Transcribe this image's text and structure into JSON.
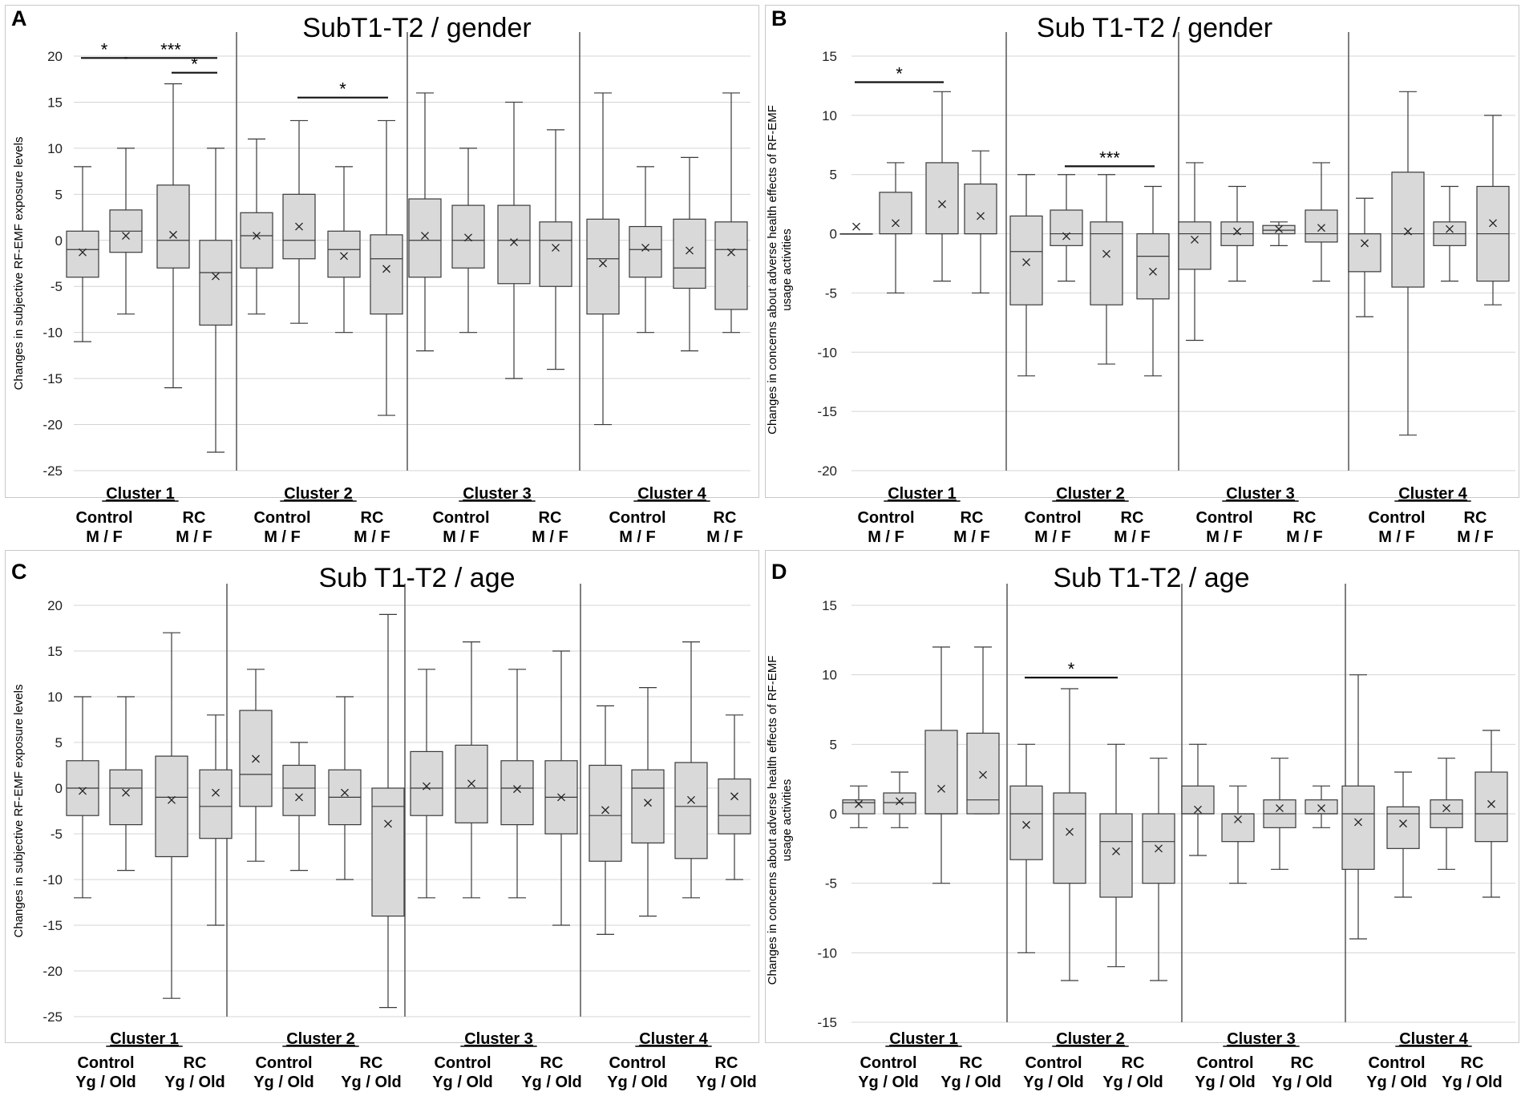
{
  "chart_data": [
    {
      "type": "boxplot",
      "panel_letter": "A",
      "title": "SubT1-T2 / gender",
      "ylabel": "Changes in subjective RF-EMF exposure levels",
      "ylim": [
        -25,
        20
      ],
      "yticks": [
        20,
        15,
        10,
        5,
        0,
        -5,
        -10,
        -15,
        -20,
        -25
      ],
      "clusters": [
        "Cluster 1",
        "Cluster 2",
        "Cluster 3",
        "Cluster 4"
      ],
      "group_labels": [
        "Control",
        "RC"
      ],
      "subgroup_label": "M / F",
      "boxes": [
        {
          "min": -11,
          "q1": -4,
          "median": -1,
          "q3": 1,
          "max": 8,
          "mean": -1.3
        },
        {
          "min": -8,
          "q1": -1.3,
          "median": 1,
          "q3": 3.3,
          "max": 10,
          "mean": 0.5
        },
        {
          "min": -16,
          "q1": -3,
          "median": 0,
          "q3": 6,
          "max": 17,
          "mean": 0.6
        },
        {
          "min": -23,
          "q1": -9.2,
          "median": -3.5,
          "q3": 0,
          "max": 10,
          "mean": -3.9
        },
        {
          "min": -8,
          "q1": -3,
          "median": 0.5,
          "q3": 3,
          "max": 11,
          "mean": 0.5
        },
        {
          "min": -9,
          "q1": -2,
          "median": 0,
          "q3": 5,
          "max": 13,
          "mean": 1.5
        },
        {
          "min": -10,
          "q1": -4,
          "median": -1,
          "q3": 1,
          "max": 8,
          "mean": -1.7
        },
        {
          "min": -19,
          "q1": -8,
          "median": -2,
          "q3": 0.6,
          "max": 13,
          "mean": -3.1
        },
        {
          "min": -12,
          "q1": -4,
          "median": 0,
          "q3": 4.5,
          "max": 16,
          "mean": 0.5
        },
        {
          "min": -10,
          "q1": -3,
          "median": 0,
          "q3": 3.8,
          "max": 10,
          "mean": 0.3
        },
        {
          "min": -15,
          "q1": -4.7,
          "median": 0,
          "q3": 3.8,
          "max": 15,
          "mean": -0.2
        },
        {
          "min": -14,
          "q1": -5,
          "median": 0,
          "q3": 2,
          "max": 12,
          "mean": -0.8
        },
        {
          "min": -20,
          "q1": -8,
          "median": -2,
          "q3": 2.3,
          "max": 16,
          "mean": -2.5
        },
        {
          "min": -10,
          "q1": -4,
          "median": -1,
          "q3": 1.5,
          "max": 8,
          "mean": -0.8
        },
        {
          "min": -12,
          "q1": -5.2,
          "median": -3,
          "q3": 2.3,
          "max": 9,
          "mean": -1.1
        },
        {
          "min": -10,
          "q1": -7.5,
          "median": -1,
          "q3": 2,
          "max": 16,
          "mean": -1.3
        }
      ],
      "significance": [
        {
          "from": 0,
          "to": 1,
          "y": 19.8,
          "label": "*"
        },
        {
          "from": 1,
          "to": 3,
          "y": 19.8,
          "label": "***"
        },
        {
          "from": 2,
          "to": 3,
          "y": 18.2,
          "label": "*"
        },
        {
          "from": 5,
          "to": 7,
          "y": 15.5,
          "label": "*"
        }
      ]
    },
    {
      "type": "boxplot",
      "panel_letter": "B",
      "title": "Sub T1-T2 / gender",
      "ylabel": "Changes in concerns about adverse health effects of RF-EMF usage activities",
      "ylim": [
        -20,
        15
      ],
      "yticks": [
        15,
        10,
        5,
        0,
        -5,
        -10,
        -15,
        -20
      ],
      "clusters": [
        "Cluster 1",
        "Cluster 2",
        "Cluster 3",
        "Cluster 4"
      ],
      "group_labels": [
        "Control",
        "RC"
      ],
      "subgroup_label": "M / F",
      "boxes": [
        {
          "min": 0,
          "q1": 0,
          "median": 0,
          "q3": 0,
          "max": 0,
          "mean": 0.6
        },
        {
          "min": -5,
          "q1": 0,
          "median": 0,
          "q3": 3.5,
          "max": 6,
          "mean": 0.9
        },
        {
          "min": -4,
          "q1": 0,
          "median": 0,
          "q3": 6,
          "max": 12,
          "mean": 2.5
        },
        {
          "min": -5,
          "q1": 0,
          "median": 0,
          "q3": 4.2,
          "max": 7,
          "mean": 1.5
        },
        {
          "min": -12,
          "q1": -6,
          "median": -1.5,
          "q3": 1.5,
          "max": 5,
          "mean": -2.4
        },
        {
          "min": -4,
          "q1": -1,
          "median": 0,
          "q3": 2,
          "max": 5,
          "mean": -0.2
        },
        {
          "min": -11,
          "q1": -6,
          "median": 0,
          "q3": 1,
          "max": 5,
          "mean": -1.7
        },
        {
          "min": -12,
          "q1": -5.5,
          "median": -1.9,
          "q3": 0,
          "max": 4,
          "mean": -3.2
        },
        {
          "min": -9,
          "q1": -3,
          "median": 0,
          "q3": 1,
          "max": 6,
          "mean": -0.5
        },
        {
          "min": -4,
          "q1": -1,
          "median": 0,
          "q3": 1,
          "max": 4,
          "mean": 0.2
        },
        {
          "min": -1,
          "q1": 0,
          "median": 0.3,
          "q3": 0.7,
          "max": 1,
          "mean": 0.4
        },
        {
          "min": -4,
          "q1": -0.7,
          "median": 0,
          "q3": 2,
          "max": 6,
          "mean": 0.5
        },
        {
          "min": -7,
          "q1": -3.2,
          "median": 0,
          "q3": 0,
          "max": 3,
          "mean": -0.8
        },
        {
          "min": -17,
          "q1": -4.5,
          "median": 0,
          "q3": 5.2,
          "max": 12,
          "mean": 0.2
        },
        {
          "min": -4,
          "q1": -1,
          "median": 0,
          "q3": 1,
          "max": 4,
          "mean": 0.4
        },
        {
          "min": -6,
          "q1": -4,
          "median": 0,
          "q3": 4,
          "max": 10,
          "mean": 0.9
        }
      ],
      "significance": [
        {
          "from": 0,
          "to": 2,
          "y": 12.8,
          "label": "*"
        },
        {
          "from": 5,
          "to": 7,
          "y": 5.7,
          "label": "***"
        }
      ]
    },
    {
      "type": "boxplot",
      "panel_letter": "C",
      "title": "Sub T1-T2 / age",
      "ylabel": "Changes in subjective RF-EMF exposure levels",
      "ylim": [
        -25,
        20
      ],
      "yticks": [
        20,
        15,
        10,
        5,
        0,
        -5,
        -10,
        -15,
        -20,
        -25
      ],
      "clusters": [
        "Cluster 1",
        "Cluster 2",
        "Cluster 3",
        "Cluster 4"
      ],
      "group_labels": [
        "Control",
        "RC"
      ],
      "subgroup_label": "Yg / Old",
      "boxes": [
        {
          "min": -12,
          "q1": -3,
          "median": 0,
          "q3": 3,
          "max": 10,
          "mean": -0.3
        },
        {
          "min": -9,
          "q1": -4,
          "median": 0,
          "q3": 2,
          "max": 10,
          "mean": -0.5
        },
        {
          "min": -23,
          "q1": -7.5,
          "median": -1,
          "q3": 3.5,
          "max": 17,
          "mean": -1.3
        },
        {
          "min": -15,
          "q1": -5.5,
          "median": -2,
          "q3": 2,
          "max": 8,
          "mean": -0.5
        },
        {
          "min": -8,
          "q1": -2,
          "median": 1.5,
          "q3": 8.5,
          "max": 13,
          "mean": 3.2
        },
        {
          "min": -9,
          "q1": -3,
          "median": 0,
          "q3": 2.5,
          "max": 5,
          "mean": -1
        },
        {
          "min": -10,
          "q1": -4,
          "median": -1,
          "q3": 2,
          "max": 10,
          "mean": -0.5
        },
        {
          "min": -24,
          "q1": -14,
          "median": -2,
          "q3": 0,
          "max": 19,
          "mean": -3.9
        },
        {
          "min": -12,
          "q1": -3,
          "median": 0,
          "q3": 4,
          "max": 13,
          "mean": 0.2
        },
        {
          "min": -12,
          "q1": -3.8,
          "median": 0,
          "q3": 4.7,
          "max": 16,
          "mean": 0.5
        },
        {
          "min": -12,
          "q1": -4,
          "median": 0,
          "q3": 3,
          "max": 13,
          "mean": -0.1
        },
        {
          "min": -15,
          "q1": -5,
          "median": -1,
          "q3": 3,
          "max": 15,
          "mean": -1
        },
        {
          "min": -16,
          "q1": -8,
          "median": -3,
          "q3": 2.5,
          "max": 9,
          "mean": -2.4
        },
        {
          "min": -14,
          "q1": -6,
          "median": 0,
          "q3": 2,
          "max": 11,
          "mean": -1.6
        },
        {
          "min": -12,
          "q1": -7.7,
          "median": -2,
          "q3": 2.8,
          "max": 16,
          "mean": -1.3
        },
        {
          "min": -10,
          "q1": -5,
          "median": -3,
          "q3": 1,
          "max": 8,
          "mean": -0.9
        }
      ],
      "significance": []
    },
    {
      "type": "boxplot",
      "panel_letter": "D",
      "title": "Sub T1-T2 / age",
      "ylabel": "Changes in concerns about adverse health effects of RF-EMF usage activities",
      "ylim": [
        -15,
        15
      ],
      "yticks": [
        15,
        10,
        5,
        0,
        -5,
        -10,
        -15
      ],
      "clusters": [
        "Cluster 1",
        "Cluster 2",
        "Cluster 3",
        "Cluster 4"
      ],
      "group_labels": [
        "Control",
        "RC"
      ],
      "subgroup_label": "Yg / Old",
      "boxes": [
        {
          "min": -1,
          "q1": 0,
          "median": 0.8,
          "q3": 1,
          "max": 2,
          "mean": 0.7
        },
        {
          "min": -1,
          "q1": 0,
          "median": 0.8,
          "q3": 1.5,
          "max": 3,
          "mean": 0.9
        },
        {
          "min": -5,
          "q1": 0,
          "median": 0,
          "q3": 6,
          "max": 12,
          "mean": 1.8
        },
        {
          "min": 0,
          "q1": 0,
          "median": 1,
          "q3": 5.8,
          "max": 12,
          "mean": 2.8
        },
        {
          "min": -10,
          "q1": -3.3,
          "median": 0,
          "q3": 2,
          "max": 5,
          "mean": -0.8
        },
        {
          "min": -12,
          "q1": -5,
          "median": 0,
          "q3": 1.5,
          "max": 9,
          "mean": -1.3
        },
        {
          "min": -11,
          "q1": -6,
          "median": -2,
          "q3": 0,
          "max": 5,
          "mean": -2.7
        },
        {
          "min": -12,
          "q1": -5,
          "median": -2,
          "q3": 0,
          "max": 4,
          "mean": -2.5
        },
        {
          "min": -3,
          "q1": 0,
          "median": 0,
          "q3": 2,
          "max": 5,
          "mean": 0.3
        },
        {
          "min": -5,
          "q1": -2,
          "median": 0,
          "q3": 0,
          "max": 2,
          "mean": -0.4
        },
        {
          "min": -4,
          "q1": -1,
          "median": 0,
          "q3": 1,
          "max": 4,
          "mean": 0.4
        },
        {
          "min": -1,
          "q1": 0,
          "median": 0,
          "q3": 1,
          "max": 2,
          "mean": 0.4
        },
        {
          "min": -9,
          "q1": -4,
          "median": 0,
          "q3": 2,
          "max": 10,
          "mean": -0.6
        },
        {
          "min": -6,
          "q1": -2.5,
          "median": 0,
          "q3": 0.5,
          "max": 3,
          "mean": -0.7
        },
        {
          "min": -4,
          "q1": -1,
          "median": 0,
          "q3": 1,
          "max": 4,
          "mean": 0.4
        },
        {
          "min": -6,
          "q1": -2,
          "median": 0,
          "q3": 3,
          "max": 6,
          "mean": 0.7
        }
      ],
      "significance": [
        {
          "from": 4,
          "to": 6,
          "y": 9.8,
          "label": "*"
        }
      ]
    }
  ],
  "colors": {
    "box_fill": "#d9d9d9",
    "stroke": "#3a3a3a",
    "grid": "#d4d4d4",
    "frame": "#c8c8c8",
    "separator": "#555555"
  }
}
